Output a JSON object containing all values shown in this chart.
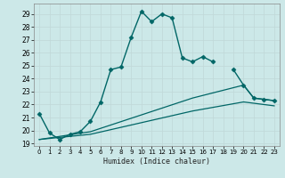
{
  "xlabel": "Humidex (Indice chaleur)",
  "bg_color": "#cce8e8",
  "grid_color": "#c0d8d8",
  "line_color": "#006666",
  "xlim": [
    -0.5,
    23.5
  ],
  "ylim": [
    18.8,
    29.8
  ],
  "xticks": [
    0,
    1,
    2,
    3,
    4,
    5,
    6,
    7,
    8,
    9,
    10,
    11,
    12,
    13,
    14,
    15,
    16,
    17,
    18,
    19,
    20,
    21,
    22,
    23
  ],
  "yticks": [
    19,
    20,
    21,
    22,
    23,
    24,
    25,
    26,
    27,
    28,
    29
  ],
  "series": [
    {
      "x": [
        0,
        1,
        2,
        3,
        4,
        5,
        6,
        7,
        8,
        9,
        10,
        11,
        12,
        13,
        14,
        15,
        16,
        17
      ],
      "y": [
        21.3,
        19.8,
        19.3,
        19.7,
        19.9,
        20.7,
        22.2,
        24.7,
        24.9,
        27.2,
        29.2,
        28.4,
        29.0,
        28.7,
        25.6,
        25.3,
        25.7,
        25.3
      ],
      "marker": "D",
      "markersize": 2.5,
      "linewidth": 1.0
    },
    {
      "x": [
        19,
        20,
        21,
        22,
        23
      ],
      "y": [
        24.7,
        23.5,
        22.5,
        22.4,
        22.3
      ],
      "marker": "D",
      "markersize": 2.5,
      "linewidth": 1.0
    },
    {
      "x": [
        0,
        5,
        10,
        15,
        20,
        21,
        22,
        23
      ],
      "y": [
        19.3,
        19.9,
        21.2,
        22.5,
        23.5,
        22.5,
        22.4,
        22.3
      ],
      "marker": null,
      "markersize": 0,
      "linewidth": 0.9
    },
    {
      "x": [
        0,
        5,
        10,
        15,
        20,
        21,
        22,
        23
      ],
      "y": [
        19.3,
        19.7,
        20.6,
        21.5,
        22.2,
        22.1,
        22.0,
        21.9
      ],
      "marker": null,
      "markersize": 0,
      "linewidth": 0.9
    }
  ]
}
